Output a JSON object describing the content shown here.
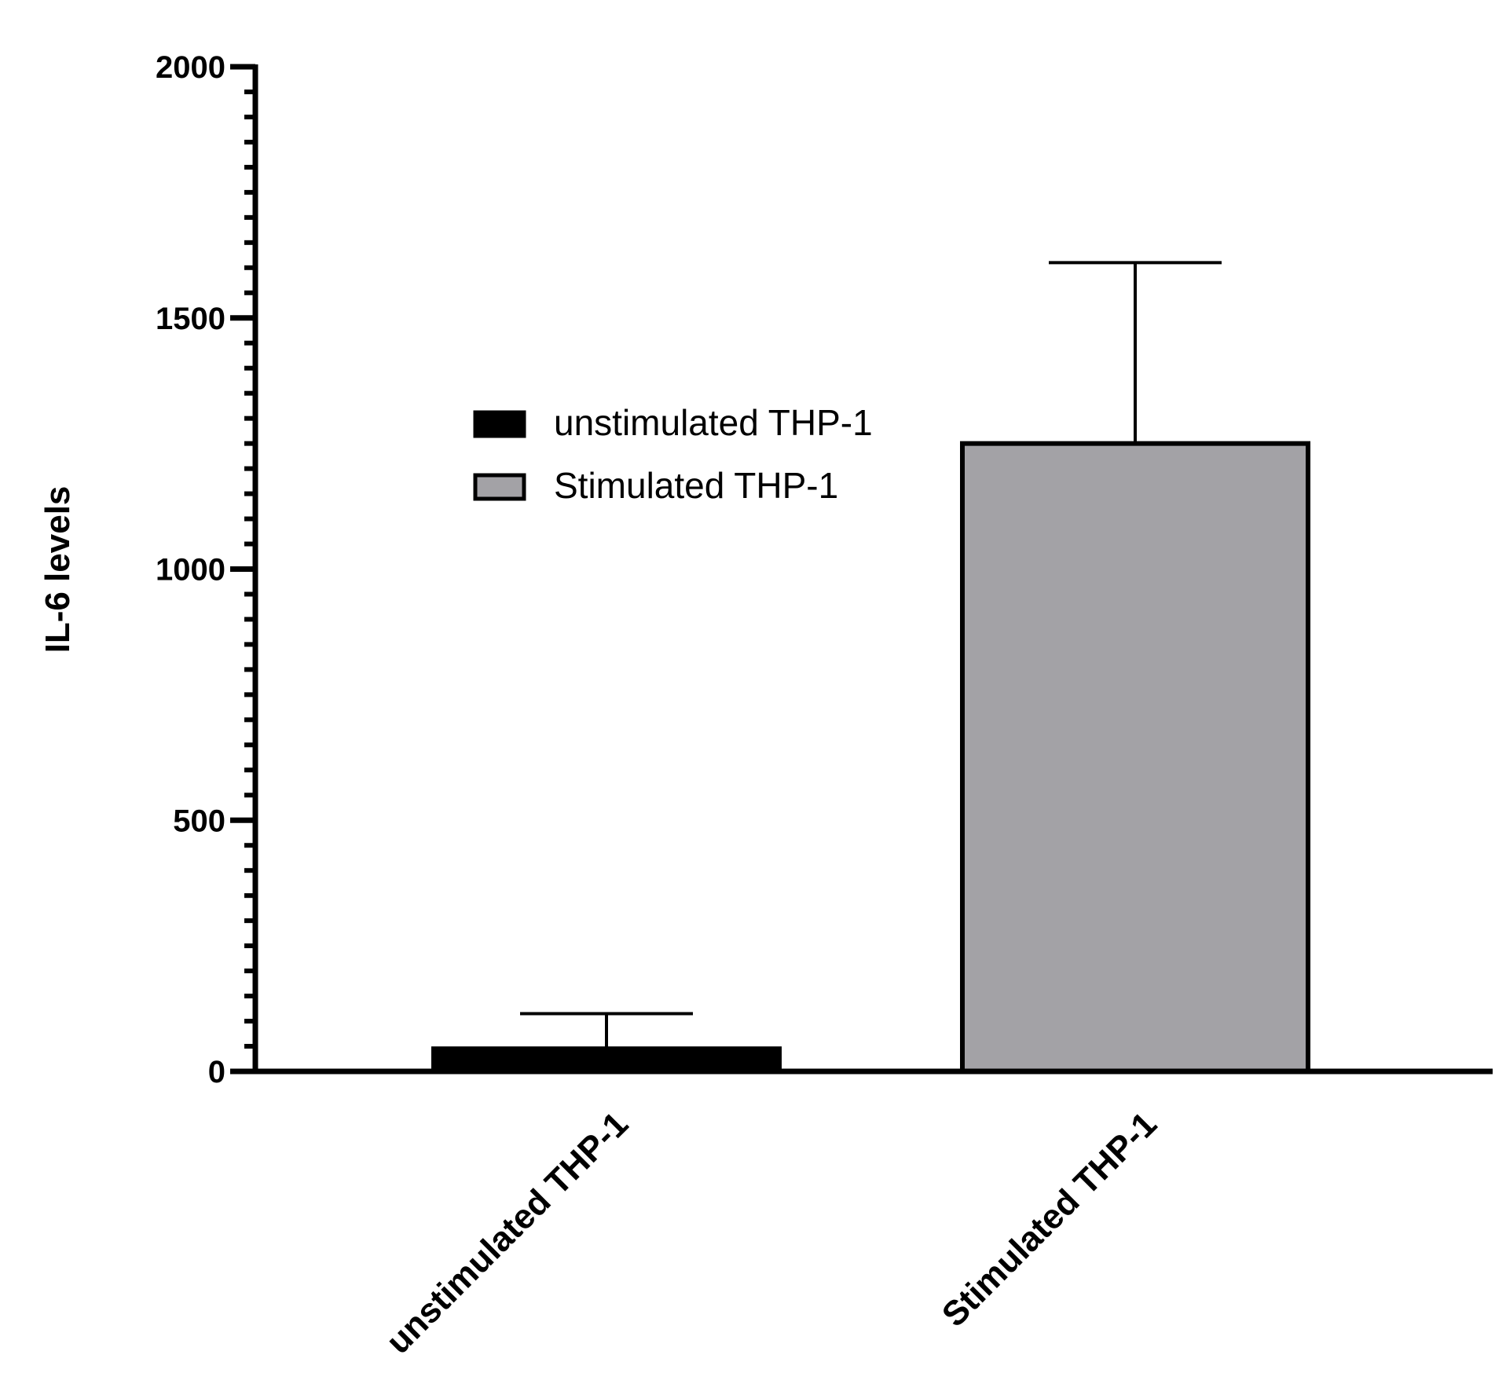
{
  "chart_data": {
    "type": "bar",
    "title": "",
    "xlabel": "",
    "ylabel": "IL-6 levels",
    "ylim": [
      0,
      2000
    ],
    "y_major_ticks": [
      0,
      500,
      1000,
      1500,
      2000
    ],
    "y_tick_labels": [
      "0",
      "500",
      "1000",
      "1500",
      "2000"
    ],
    "y_minor_tick_step": 50,
    "categories": [
      "unstimulated THP-1",
      "Stimulated THP-1"
    ],
    "values": [
      45,
      1250
    ],
    "error_upper": [
      115,
      1610
    ],
    "colors": [
      "#000000",
      "#a3a2a6"
    ],
    "grid": false,
    "legend": {
      "placement": "center",
      "entries": [
        {
          "label": "unstimulated THP-1",
          "color": "#000000"
        },
        {
          "label": "Stimulated THP-1",
          "color": "#a3a2a6"
        }
      ]
    }
  }
}
